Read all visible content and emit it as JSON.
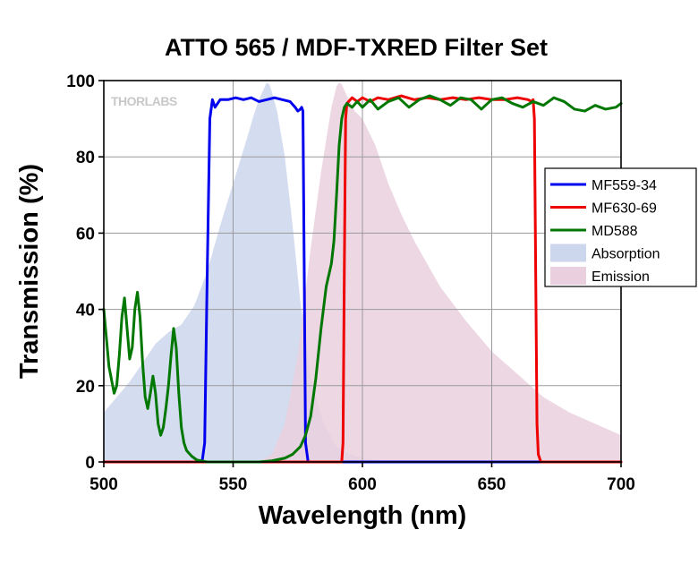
{
  "chart_data": {
    "type": "line",
    "title": "ATTO 565 / MDF-TXRED Filter Set",
    "xlabel": "Wavelength (nm)",
    "ylabel": "Transmission (%)",
    "xlim": [
      500,
      700
    ],
    "ylim": [
      0,
      100
    ],
    "xticks": [
      500,
      550,
      600,
      650,
      700
    ],
    "yticks": [
      0,
      20,
      40,
      60,
      80,
      100
    ],
    "grid": true,
    "legend_position": "right",
    "watermark": "THORLABS",
    "series": [
      {
        "name": "MF559-34",
        "kind": "line",
        "color": "#0000ee",
        "x": [
          500,
          538,
          539,
          540,
          541,
          542,
          543,
          545,
          548,
          551,
          554,
          557,
          560,
          563,
          566,
          569,
          572,
          574,
          575,
          576,
          576.5,
          577,
          577.5,
          578,
          579,
          700
        ],
        "y": [
          0,
          0,
          5,
          50,
          90,
          95,
          93,
          95,
          95,
          95.5,
          95,
          95.5,
          94.5,
          95,
          95.5,
          95,
          94.5,
          93,
          92,
          92.5,
          93,
          92,
          50,
          5,
          0,
          0
        ]
      },
      {
        "name": "MF630-69",
        "kind": "line",
        "color": "#ee0000",
        "x": [
          500,
          592,
          592.5,
          593,
          593.5,
          594,
          596,
          598,
          600,
          603,
          606,
          610,
          615,
          620,
          625,
          630,
          635,
          640,
          645,
          650,
          655,
          660,
          664,
          665.5,
          666,
          666.5,
          667,
          667.5,
          668,
          669,
          700
        ],
        "y": [
          0,
          0,
          5,
          50,
          90,
          94,
          95.5,
          94.5,
          95.5,
          94.5,
          95.5,
          95,
          96,
          95,
          95.5,
          95,
          95.5,
          95,
          95.5,
          95,
          95,
          95.5,
          95,
          94.5,
          95,
          90,
          50,
          10,
          2,
          0,
          0
        ]
      },
      {
        "name": "MD588",
        "kind": "line",
        "color": "#007700",
        "x": [
          500,
          502,
          504,
          505,
          506,
          507,
          508,
          509,
          510,
          511,
          512,
          513,
          514,
          515,
          516,
          517,
          518,
          519,
          520,
          521,
          522,
          523,
          524,
          525,
          526,
          527,
          528,
          529,
          530,
          531,
          532,
          534,
          536,
          540,
          550,
          560,
          565,
          570,
          573,
          576,
          578,
          580,
          582,
          584,
          586,
          587,
          588,
          589,
          590,
          591,
          592,
          593,
          594,
          596,
          598,
          600,
          603,
          606,
          610,
          614,
          618,
          622,
          626,
          630,
          634,
          638,
          642,
          646,
          650,
          654,
          658,
          662,
          666,
          670,
          674,
          678,
          682,
          686,
          690,
          694,
          698,
          700
        ],
        "y": [
          40,
          25,
          18,
          20,
          28,
          38,
          43,
          35,
          27,
          30,
          40,
          44.5,
          38,
          26,
          17,
          14,
          18,
          22.5,
          18,
          10,
          7,
          9,
          14,
          20,
          28,
          35,
          30,
          18,
          9,
          5,
          3,
          1.5,
          0.5,
          0,
          0,
          0,
          0.3,
          1,
          2,
          4,
          7,
          12,
          22,
          35,
          46,
          49,
          52,
          58,
          70,
          83,
          90,
          93,
          94,
          93,
          94.5,
          93,
          95,
          92.5,
          94.5,
          95.5,
          93,
          95,
          96,
          95,
          93.5,
          95.5,
          95,
          92.5,
          95,
          95.5,
          94,
          93,
          94.5,
          93.5,
          95.5,
          94.5,
          92.5,
          92,
          93.5,
          92.5,
          93,
          94
        ]
      },
      {
        "name": "Absorption",
        "kind": "area",
        "color": "#ccd6ec",
        "x": [
          500,
          505,
          510,
          515,
          520,
          525,
          530,
          535,
          540,
          545,
          550,
          555,
          558,
          560,
          562,
          563,
          564,
          565,
          567,
          570,
          573,
          576,
          580,
          585,
          590,
          595,
          600,
          610,
          620,
          700
        ],
        "y": [
          13,
          17,
          21,
          26,
          31,
          34,
          36,
          41,
          50,
          62,
          73,
          84,
          91,
          95,
          98,
          99.5,
          99,
          97,
          92,
          80,
          62,
          42,
          22,
          10,
          4,
          2,
          1,
          0.3,
          0,
          0
        ]
      },
      {
        "name": "Emission",
        "kind": "area",
        "color": "#ead0de",
        "x": [
          500,
          560,
          565,
          570,
          575,
          580,
          584,
          588,
          590,
          591,
          592,
          594,
          597,
          600,
          605,
          610,
          615,
          620,
          630,
          640,
          650,
          660,
          670,
          680,
          690,
          700
        ],
        "y": [
          0,
          0,
          2,
          10,
          28,
          56,
          76,
          93,
          98.5,
          99.5,
          99,
          96,
          92,
          90,
          83,
          73,
          65,
          58,
          46,
          37,
          29,
          23,
          17,
          13,
          10,
          7
        ]
      }
    ]
  }
}
